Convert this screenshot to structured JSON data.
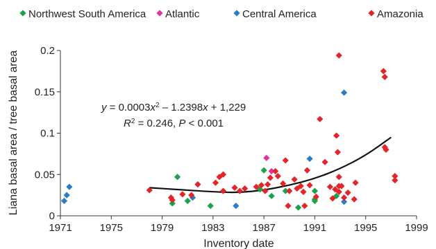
{
  "chart_data": {
    "type": "scatter",
    "title": "",
    "xlabel": "Inventory date",
    "ylabel": "Liana basal area / tree basal area",
    "xlim": [
      1971,
      1999
    ],
    "ylim": [
      0,
      0.2
    ],
    "xticks": [
      1971,
      1975,
      1979,
      1983,
      1987,
      1991,
      1995,
      1999
    ],
    "xtick_labels": [
      "1971",
      "1975",
      "1979",
      "1983",
      "1987",
      "1991",
      "1995",
      "1999"
    ],
    "yticks": [
      0,
      0.05,
      0.1,
      0.15,
      0.2
    ],
    "ytick_labels": [
      "0",
      "0.05",
      "0.1",
      "0.15",
      "0.2"
    ],
    "grid": false,
    "legend_position": "top",
    "marker": "diamond",
    "series": [
      {
        "name": "Northwest South America",
        "color": "#1aa34a",
        "points": [
          [
            1979.8,
            0.015
          ],
          [
            1980.2,
            0.047
          ],
          [
            1981.0,
            0.018
          ],
          [
            1982.8,
            0.012
          ],
          [
            1986.7,
            0.032
          ],
          [
            1987.0,
            0.055
          ],
          [
            1987.6,
            0.024
          ],
          [
            1988.7,
            0.03
          ],
          [
            1989.7,
            0.01
          ],
          [
            1991.0,
            0.03
          ],
          [
            1991.0,
            0.02
          ],
          [
            1991.0,
            0.018
          ],
          [
            1992.7,
            0.024
          ]
        ]
      },
      {
        "name": "Atlantic",
        "color": "#e0359b",
        "points": [
          [
            1987.2,
            0.07
          ],
          [
            1987.6,
            0.054
          ]
        ]
      },
      {
        "name": "Central America",
        "color": "#2a7cc7",
        "points": [
          [
            1971.3,
            0.018
          ],
          [
            1971.5,
            0.025
          ],
          [
            1971.7,
            0.035
          ],
          [
            1981.4,
            0.022
          ],
          [
            1984.8,
            0.012
          ],
          [
            1990.6,
            0.069
          ],
          [
            1993.3,
            0.149
          ],
          [
            1993.3,
            0.017
          ]
        ]
      },
      {
        "name": "Amazonia",
        "color": "#e3252a",
        "points": [
          [
            1978.0,
            0.031
          ],
          [
            1979.7,
            0.022
          ],
          [
            1979.8,
            0.019
          ],
          [
            1980.6,
            0.026
          ],
          [
            1981.3,
            0.025
          ],
          [
            1981.8,
            0.038
          ],
          [
            1983.2,
            0.04
          ],
          [
            1983.5,
            0.047
          ],
          [
            1983.8,
            0.05
          ],
          [
            1983.8,
            0.03
          ],
          [
            1984.7,
            0.034
          ],
          [
            1985.1,
            0.03
          ],
          [
            1985.5,
            0.033
          ],
          [
            1986.4,
            0.035
          ],
          [
            1986.8,
            0.037
          ],
          [
            1987.1,
            0.03
          ],
          [
            1987.3,
            0.038
          ],
          [
            1987.5,
            0.046
          ],
          [
            1987.9,
            0.054
          ],
          [
            1988.1,
            0.048
          ],
          [
            1988.5,
            0.039
          ],
          [
            1988.7,
            0.067
          ],
          [
            1988.9,
            0.012
          ],
          [
            1989.0,
            0.03
          ],
          [
            1989.4,
            0.044
          ],
          [
            1989.6,
            0.033
          ],
          [
            1989.9,
            0.036
          ],
          [
            1990.1,
            0.029
          ],
          [
            1990.2,
            0.012
          ],
          [
            1990.4,
            0.055
          ],
          [
            1990.6,
            0.037
          ],
          [
            1991.1,
            0.023
          ],
          [
            1991.4,
            0.117
          ],
          [
            1991.8,
            0.065
          ],
          [
            1992.2,
            0.035
          ],
          [
            1992.4,
            0.021
          ],
          [
            1992.6,
            0.032
          ],
          [
            1992.7,
            0.097
          ],
          [
            1992.8,
            0.077
          ],
          [
            1992.9,
            0.047
          ],
          [
            1992.9,
            0.029
          ],
          [
            1992.9,
            0.036
          ],
          [
            1992.9,
            0.194
          ],
          [
            1993.1,
            0.036
          ],
          [
            1993.3,
            0.022
          ],
          [
            1993.6,
            0.028
          ],
          [
            1994.1,
            0.02
          ],
          [
            1994.2,
            0.04
          ],
          [
            1996.4,
            0.175
          ],
          [
            1996.5,
            0.168
          ],
          [
            1996.5,
            0.083
          ],
          [
            1996.6,
            0.08
          ],
          [
            1997.3,
            0.048
          ],
          [
            1997.3,
            0.043
          ]
        ]
      }
    ],
    "trendline": {
      "type": "quadratic",
      "x_range": [
        1978,
        1997
      ],
      "y_values": [
        [
          1978,
          0.034
        ],
        [
          1980,
          0.032
        ],
        [
          1983,
          0.029
        ],
        [
          1985,
          0.028
        ],
        [
          1987,
          0.031
        ],
        [
          1989,
          0.037
        ],
        [
          1991,
          0.045
        ],
        [
          1993,
          0.057
        ],
        [
          1995,
          0.073
        ],
        [
          1997,
          0.095
        ]
      ],
      "color": "#111111"
    },
    "annotations": {
      "eq_y": "y",
      "eq_rest": " = 0.0003",
      "eq_x": "x",
      "eq_sup": "2",
      "eq_tail": " – 1.2398",
      "eq_x2": "x",
      "eq_end": " + 1,229",
      "r_R": "R",
      "r_sup": "2",
      "r_mid": " = 0.246, ",
      "r_P": "P",
      "r_end": " < 0.001"
    }
  }
}
